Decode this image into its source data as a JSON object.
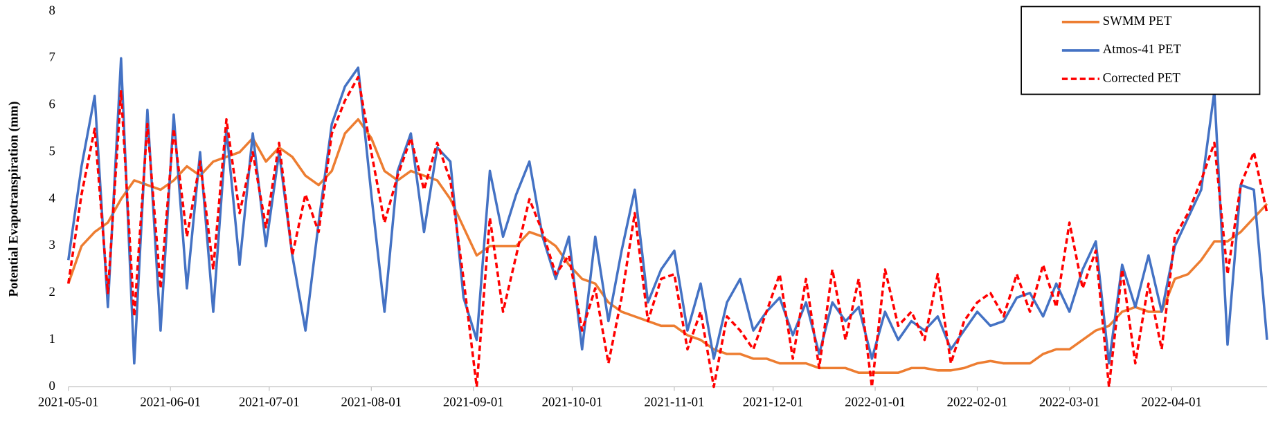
{
  "chart_data": {
    "type": "line",
    "y_label": "Potential Evapotranspiration (mm)",
    "x": [
      "2021-05-01",
      "2021-05-05",
      "2021-05-09",
      "2021-05-13",
      "2021-05-17",
      "2021-05-21",
      "2021-05-25",
      "2021-05-29",
      "2021-06-02",
      "2021-06-06",
      "2021-06-10",
      "2021-06-14",
      "2021-06-18",
      "2021-06-22",
      "2021-06-26",
      "2021-06-30",
      "2021-07-04",
      "2021-07-08",
      "2021-07-12",
      "2021-07-16",
      "2021-07-20",
      "2021-07-24",
      "2021-07-28",
      "2021-08-01",
      "2021-08-05",
      "2021-08-09",
      "2021-08-13",
      "2021-08-17",
      "2021-08-21",
      "2021-08-25",
      "2021-08-29",
      "2021-09-02",
      "2021-09-06",
      "2021-09-10",
      "2021-09-14",
      "2021-09-18",
      "2021-09-22",
      "2021-09-26",
      "2021-09-30",
      "2021-10-04",
      "2021-10-08",
      "2021-10-12",
      "2021-10-16",
      "2021-10-20",
      "2021-10-24",
      "2021-10-28",
      "2021-11-01",
      "2021-11-05",
      "2021-11-09",
      "2021-11-13",
      "2021-11-17",
      "2021-11-21",
      "2021-11-25",
      "2021-11-29",
      "2021-12-03",
      "2021-12-07",
      "2021-12-11",
      "2021-12-15",
      "2021-12-19",
      "2021-12-23",
      "2021-12-27",
      "2021-12-31",
      "2022-01-04",
      "2022-01-08",
      "2022-01-12",
      "2022-01-16",
      "2022-01-20",
      "2022-01-24",
      "2022-01-28",
      "2022-02-01",
      "2022-02-05",
      "2022-02-09",
      "2022-02-13",
      "2022-02-17",
      "2022-02-21",
      "2022-02-25",
      "2022-03-01",
      "2022-03-05",
      "2022-03-09",
      "2022-03-13",
      "2022-03-17",
      "2022-03-21",
      "2022-03-25",
      "2022-03-29",
      "2022-04-02",
      "2022-04-06",
      "2022-04-10",
      "2022-04-14",
      "2022-04-18",
      "2022-04-22",
      "2022-04-26",
      "2022-04-30"
    ],
    "series": [
      {
        "name": "SWMM PET",
        "color": "#ed7d31",
        "line_style": "solid",
        "values": [
          2.2,
          3.0,
          3.3,
          3.5,
          4.0,
          4.4,
          4.3,
          4.2,
          4.4,
          4.7,
          4.5,
          4.8,
          4.9,
          5.0,
          5.3,
          4.8,
          5.1,
          4.9,
          4.5,
          4.3,
          4.6,
          5.4,
          5.7,
          5.3,
          4.6,
          4.4,
          4.6,
          4.5,
          4.4,
          4.0,
          3.4,
          2.8,
          3.0,
          3.0,
          3.0,
          3.3,
          3.2,
          3.0,
          2.6,
          2.3,
          2.2,
          1.8,
          1.6,
          1.5,
          1.4,
          1.3,
          1.3,
          1.1,
          1.0,
          0.8,
          0.7,
          0.7,
          0.6,
          0.6,
          0.5,
          0.5,
          0.5,
          0.4,
          0.4,
          0.4,
          0.3,
          0.3,
          0.3,
          0.3,
          0.4,
          0.4,
          0.35,
          0.35,
          0.4,
          0.5,
          0.55,
          0.5,
          0.5,
          0.5,
          0.7,
          0.8,
          0.8,
          1.0,
          1.2,
          1.3,
          1.6,
          1.7,
          1.6,
          1.6,
          2.3,
          2.4,
          2.7,
          3.1,
          3.1,
          3.3,
          3.6,
          3.9
        ]
      },
      {
        "name": "Atmos-41 PET",
        "color": "#4472c4",
        "line_style": "solid",
        "values": [
          2.7,
          4.7,
          6.2,
          1.7,
          7.0,
          0.5,
          5.9,
          1.2,
          5.8,
          2.1,
          5.0,
          1.6,
          5.5,
          2.6,
          5.4,
          3.0,
          5.0,
          2.8,
          1.2,
          3.5,
          5.6,
          6.4,
          6.8,
          4.1,
          1.6,
          4.6,
          5.4,
          3.3,
          5.1,
          4.8,
          1.9,
          1.0,
          4.6,
          3.2,
          4.1,
          4.8,
          3.2,
          2.3,
          3.2,
          0.8,
          3.2,
          1.4,
          2.9,
          4.2,
          1.8,
          2.5,
          2.9,
          1.2,
          2.2,
          0.6,
          1.8,
          2.3,
          1.2,
          1.6,
          1.9,
          1.1,
          1.8,
          0.7,
          1.8,
          1.4,
          1.7,
          0.6,
          1.6,
          1.0,
          1.4,
          1.2,
          1.5,
          0.8,
          1.2,
          1.6,
          1.3,
          1.4,
          1.9,
          2.0,
          1.5,
          2.2,
          1.6,
          2.5,
          3.1,
          0.5,
          2.6,
          1.7,
          2.8,
          1.6,
          3.0,
          3.6,
          4.2,
          6.3,
          0.9,
          4.3,
          4.2,
          1.0
        ]
      },
      {
        "name": "Corrected PET",
        "color": "#ff0000",
        "line_style": "dashed",
        "values": [
          2.2,
          4.1,
          5.5,
          2.0,
          6.3,
          1.5,
          5.6,
          2.1,
          5.5,
          3.2,
          4.8,
          2.5,
          5.7,
          3.7,
          5.0,
          3.4,
          5.2,
          2.8,
          4.1,
          3.3,
          5.4,
          6.1,
          6.6,
          5.0,
          3.5,
          4.5,
          5.3,
          4.2,
          5.2,
          4.4,
          2.3,
          0.0,
          3.6,
          1.6,
          2.8,
          4.0,
          3.3,
          2.4,
          2.8,
          1.2,
          2.1,
          0.5,
          1.9,
          3.7,
          1.4,
          2.3,
          2.4,
          0.8,
          1.6,
          0.0,
          1.5,
          1.2,
          0.8,
          1.6,
          2.4,
          0.6,
          2.3,
          0.4,
          2.5,
          1.0,
          2.3,
          0.0,
          2.5,
          1.3,
          1.6,
          1.0,
          2.4,
          0.5,
          1.4,
          1.8,
          2.0,
          1.5,
          2.4,
          1.6,
          2.6,
          1.7,
          3.5,
          2.1,
          2.9,
          0.0,
          2.5,
          0.5,
          2.2,
          0.8,
          3.2,
          3.7,
          4.4,
          5.2,
          2.4,
          4.3,
          5.0,
          3.7
        ]
      }
    ],
    "xlim": [
      "2021-05-01",
      "2022-04-30"
    ],
    "xticks": [
      "2021-05-01",
      "2021-06-01",
      "2021-07-01",
      "2021-08-01",
      "2021-09-01",
      "2021-10-01",
      "2021-11-01",
      "2021-12-01",
      "2022-01-01",
      "2022-02-01",
      "2022-03-01",
      "2022-04-01"
    ],
    "ylim": [
      0,
      8
    ],
    "yticks": [
      0,
      1,
      2,
      3,
      4,
      5,
      6,
      7,
      8
    ],
    "grid": false,
    "legend_position": "upper right"
  }
}
